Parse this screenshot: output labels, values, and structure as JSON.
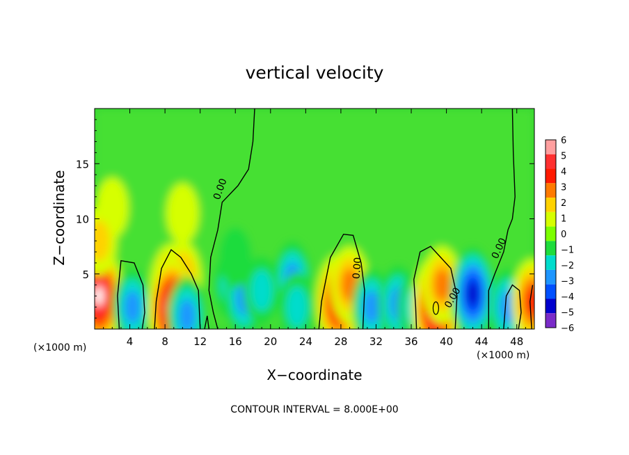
{
  "chart_data": {
    "type": "heatmap",
    "title": "vertical velocity",
    "xlabel": "X−coordinate",
    "ylabel": "Z−coordinate",
    "x_unit_left": "(×1000 m)",
    "x_unit_right": "(×1000 m)",
    "xlim": [
      0,
      50
    ],
    "ylim": [
      0,
      20
    ],
    "xticks": [
      4,
      8,
      12,
      16,
      20,
      24,
      28,
      32,
      36,
      40,
      44,
      48
    ],
    "xtick_labels": [
      "4",
      "8",
      "12",
      "16",
      "20",
      "24",
      "28",
      "32",
      "36",
      "40",
      "44",
      "48"
    ],
    "yticks": [
      5,
      10,
      15
    ],
    "ytick_labels": [
      "5",
      "10",
      "15"
    ],
    "footer": "CONTOUR INTERVAL = 8.000E+00",
    "contour_labels": [
      "0.00",
      "0.00",
      "0.00",
      "0.00"
    ],
    "colorbar": {
      "levels": [
        6,
        5,
        4,
        3,
        2,
        1,
        0,
        -1,
        -2,
        -3,
        -4,
        -5,
        -6
      ],
      "level_labels": [
        "6",
        "5",
        "4",
        "3",
        "2",
        "1",
        "0",
        "−1",
        "−2",
        "−3",
        "−4",
        "−5",
        "−6"
      ],
      "colors": [
        "#ff9f9f",
        "#ff3030",
        "#ff1a00",
        "#ff7a00",
        "#ffd200",
        "#d6ff00",
        "#7cff00",
        "#1edc3c",
        "#00dccc",
        "#1e96ff",
        "#0050ff",
        "#0000cd",
        "#7a2bc8"
      ]
    },
    "background_color": "#32d232",
    "features": [
      {
        "kind": "updraft",
        "x": 0.5,
        "z": 3.0,
        "w": 6.0
      },
      {
        "kind": "downdraft",
        "x": 4.3,
        "z": 2.0,
        "w": -3.0
      },
      {
        "kind": "updraft",
        "x": 8.8,
        "z": 3.5,
        "w": 4.8
      },
      {
        "kind": "updraft",
        "x": 10.0,
        "z": 4.5,
        "w": 3.2
      },
      {
        "kind": "updraft",
        "x": 8.8,
        "z": 1.8,
        "w": 6.0
      },
      {
        "kind": "downdraft",
        "x": 10.5,
        "z": 1.2,
        "w": -2.5
      },
      {
        "kind": "downdraft",
        "x": 15.5,
        "z": 4.0,
        "w": -2.0
      },
      {
        "kind": "downdraft",
        "x": 17.0,
        "z": 2.8,
        "w": -2.5
      },
      {
        "kind": "downdraft",
        "x": 19.0,
        "z": 3.5,
        "w": -1.8
      },
      {
        "kind": "downdraft",
        "x": 22.5,
        "z": 4.5,
        "w": -3.2
      },
      {
        "kind": "downdraft",
        "x": 23.0,
        "z": 2.0,
        "w": -2.0
      },
      {
        "kind": "updraft",
        "x": 27.7,
        "z": 2.5,
        "w": 5.3
      },
      {
        "kind": "updraft",
        "x": 29.0,
        "z": 4.0,
        "w": 3.0
      },
      {
        "kind": "downdraft",
        "x": 31.5,
        "z": 2.0,
        "w": -2.5
      },
      {
        "kind": "downdraft",
        "x": 34.5,
        "z": 2.3,
        "w": -3.0
      },
      {
        "kind": "downdraft",
        "x": 36.5,
        "z": 2.0,
        "w": -2.0
      },
      {
        "kind": "updraft",
        "x": 38.8,
        "z": 2.0,
        "w": 6.0
      },
      {
        "kind": "updraft",
        "x": 39.5,
        "z": 4.0,
        "w": 3.0
      },
      {
        "kind": "downdraft",
        "x": 43.0,
        "z": 3.2,
        "w": -4.6
      },
      {
        "kind": "downdraft",
        "x": 47.0,
        "z": 2.0,
        "w": -3.0
      },
      {
        "kind": "updraft",
        "x": 49.8,
        "z": 2.5,
        "w": 4.0
      },
      {
        "kind": "updraft",
        "x": 10.0,
        "z": 10.5,
        "w": 1.3
      },
      {
        "kind": "updraft",
        "x": 2.0,
        "z": 11.0,
        "w": 1.0
      },
      {
        "kind": "updraft",
        "x": 0.5,
        "z": 8.0,
        "w": 1.5
      },
      {
        "kind": "downdraft",
        "x": 16.0,
        "z": 6.5,
        "w": -1.2
      }
    ]
  }
}
